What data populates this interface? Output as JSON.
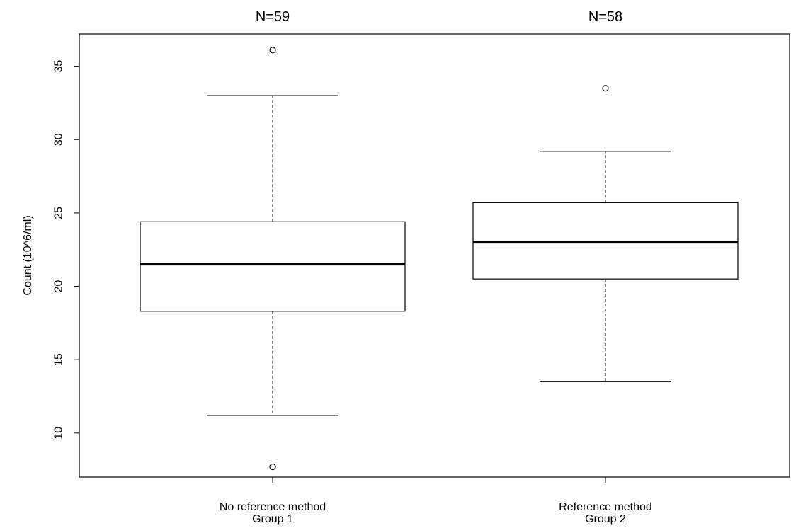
{
  "chart_data": {
    "type": "boxplot",
    "ylabel": "Count  (10^6/ml)",
    "ylim": [
      7,
      37.2
    ],
    "yticks": [
      10,
      15,
      20,
      25,
      30,
      35
    ],
    "grid": false,
    "groups": [
      {
        "label_line1": "No reference method",
        "label_line2": "Group 1",
        "n_label": "N=59",
        "whisker_low": 11.2,
        "q1": 18.3,
        "median": 21.5,
        "q3": 24.4,
        "whisker_high": 33.0,
        "outliers": [
          36.1,
          7.7
        ]
      },
      {
        "label_line1": "Reference method",
        "label_line2": "Group 2",
        "n_label": "N=58",
        "whisker_low": 13.5,
        "q1": 20.5,
        "median": 23.0,
        "q3": 25.7,
        "whisker_high": 29.2,
        "outliers": [
          33.5
        ]
      }
    ]
  }
}
